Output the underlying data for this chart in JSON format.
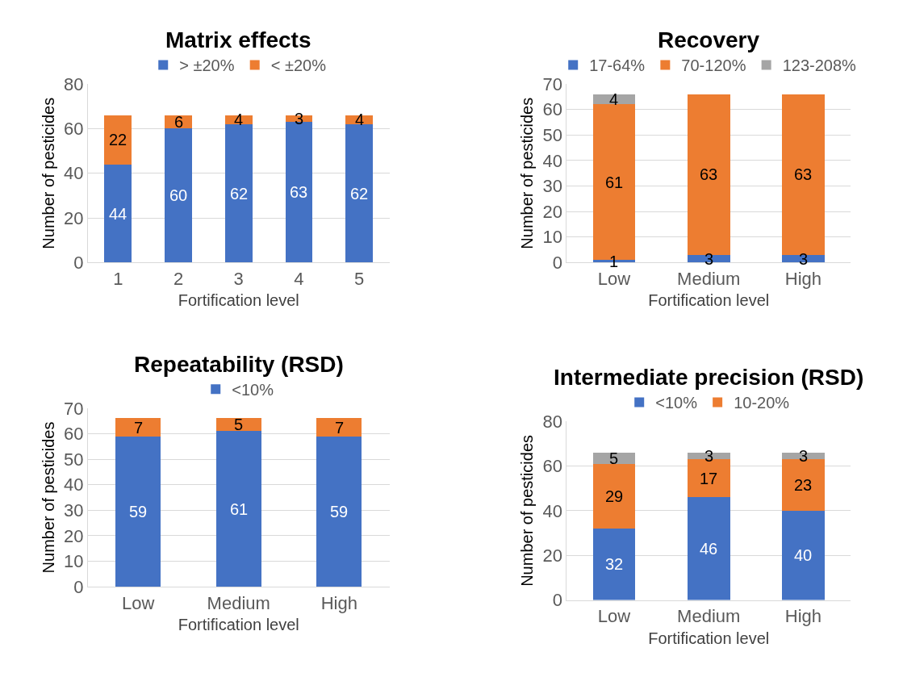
{
  "chart_data": [
    {
      "type": "bar",
      "title": "Matrix effects",
      "xlabel": "Fortification level",
      "ylabel": "Number of pesticides",
      "categories": [
        "1",
        "2",
        "3",
        "4",
        "5"
      ],
      "stacked": true,
      "data_labels": true,
      "grid": "y",
      "legend": "top",
      "ylim": [
        0,
        80
      ],
      "yticks": [
        0,
        20,
        40,
        60,
        80
      ],
      "series": [
        {
          "name": "> ±20%",
          "color": "#4472c4",
          "values": [
            44,
            60,
            62,
            63,
            62
          ]
        },
        {
          "name": "< ±20%",
          "color": "#ed7d31",
          "values": [
            22,
            6,
            4,
            3,
            4
          ]
        }
      ]
    },
    {
      "type": "bar",
      "title": "Recovery",
      "xlabel": "Fortification level",
      "ylabel": "Number of pesticides",
      "categories": [
        "Low",
        "Medium",
        "High"
      ],
      "stacked": true,
      "data_labels": true,
      "grid": "y",
      "legend": "top",
      "ylim": [
        0,
        70
      ],
      "yticks": [
        0,
        10,
        20,
        30,
        40,
        50,
        60,
        70
      ],
      "series": [
        {
          "name": "17-64%",
          "color": "#4472c4",
          "values": [
            1,
            3,
            3
          ]
        },
        {
          "name": "70-120%",
          "color": "#ed7d31",
          "values": [
            61,
            63,
            63
          ]
        },
        {
          "name": "123-208%",
          "color": "#a5a5a5",
          "values": [
            4,
            null,
            null
          ]
        }
      ]
    },
    {
      "type": "bar",
      "title": "Repeatability (RSD)",
      "xlabel": "Fortification level",
      "ylabel": "Number of pesticides",
      "categories": [
        "Low",
        "Medium",
        "High"
      ],
      "stacked": true,
      "data_labels": true,
      "grid": "y",
      "legend": "top",
      "ylim": [
        0,
        70
      ],
      "yticks": [
        0,
        10,
        20,
        30,
        40,
        50,
        60,
        70
      ],
      "series": [
        {
          "name": "<10%",
          "color": "#4472c4",
          "values": [
            59,
            61,
            59
          ]
        },
        {
          "color": "#ed7d31",
          "values": [
            7,
            5,
            7
          ]
        }
      ]
    },
    {
      "type": "bar",
      "title": "Intermediate precision (RSD)",
      "xlabel": "Fortification level",
      "ylabel": "Number of pesticides",
      "categories": [
        "Low",
        "Medium",
        "High"
      ],
      "stacked": true,
      "data_labels": true,
      "grid": "y",
      "legend": "top",
      "ylim": [
        0,
        80
      ],
      "yticks": [
        0,
        20,
        40,
        60,
        80
      ],
      "series": [
        {
          "name": "<10%",
          "color": "#4472c4",
          "values": [
            32,
            46,
            40
          ]
        },
        {
          "name": "10-20%",
          "color": "#ed7d31",
          "values": [
            29,
            17,
            23
          ]
        },
        {
          "color": "#a5a5a5",
          "values": [
            5,
            3,
            3
          ]
        }
      ]
    }
  ]
}
